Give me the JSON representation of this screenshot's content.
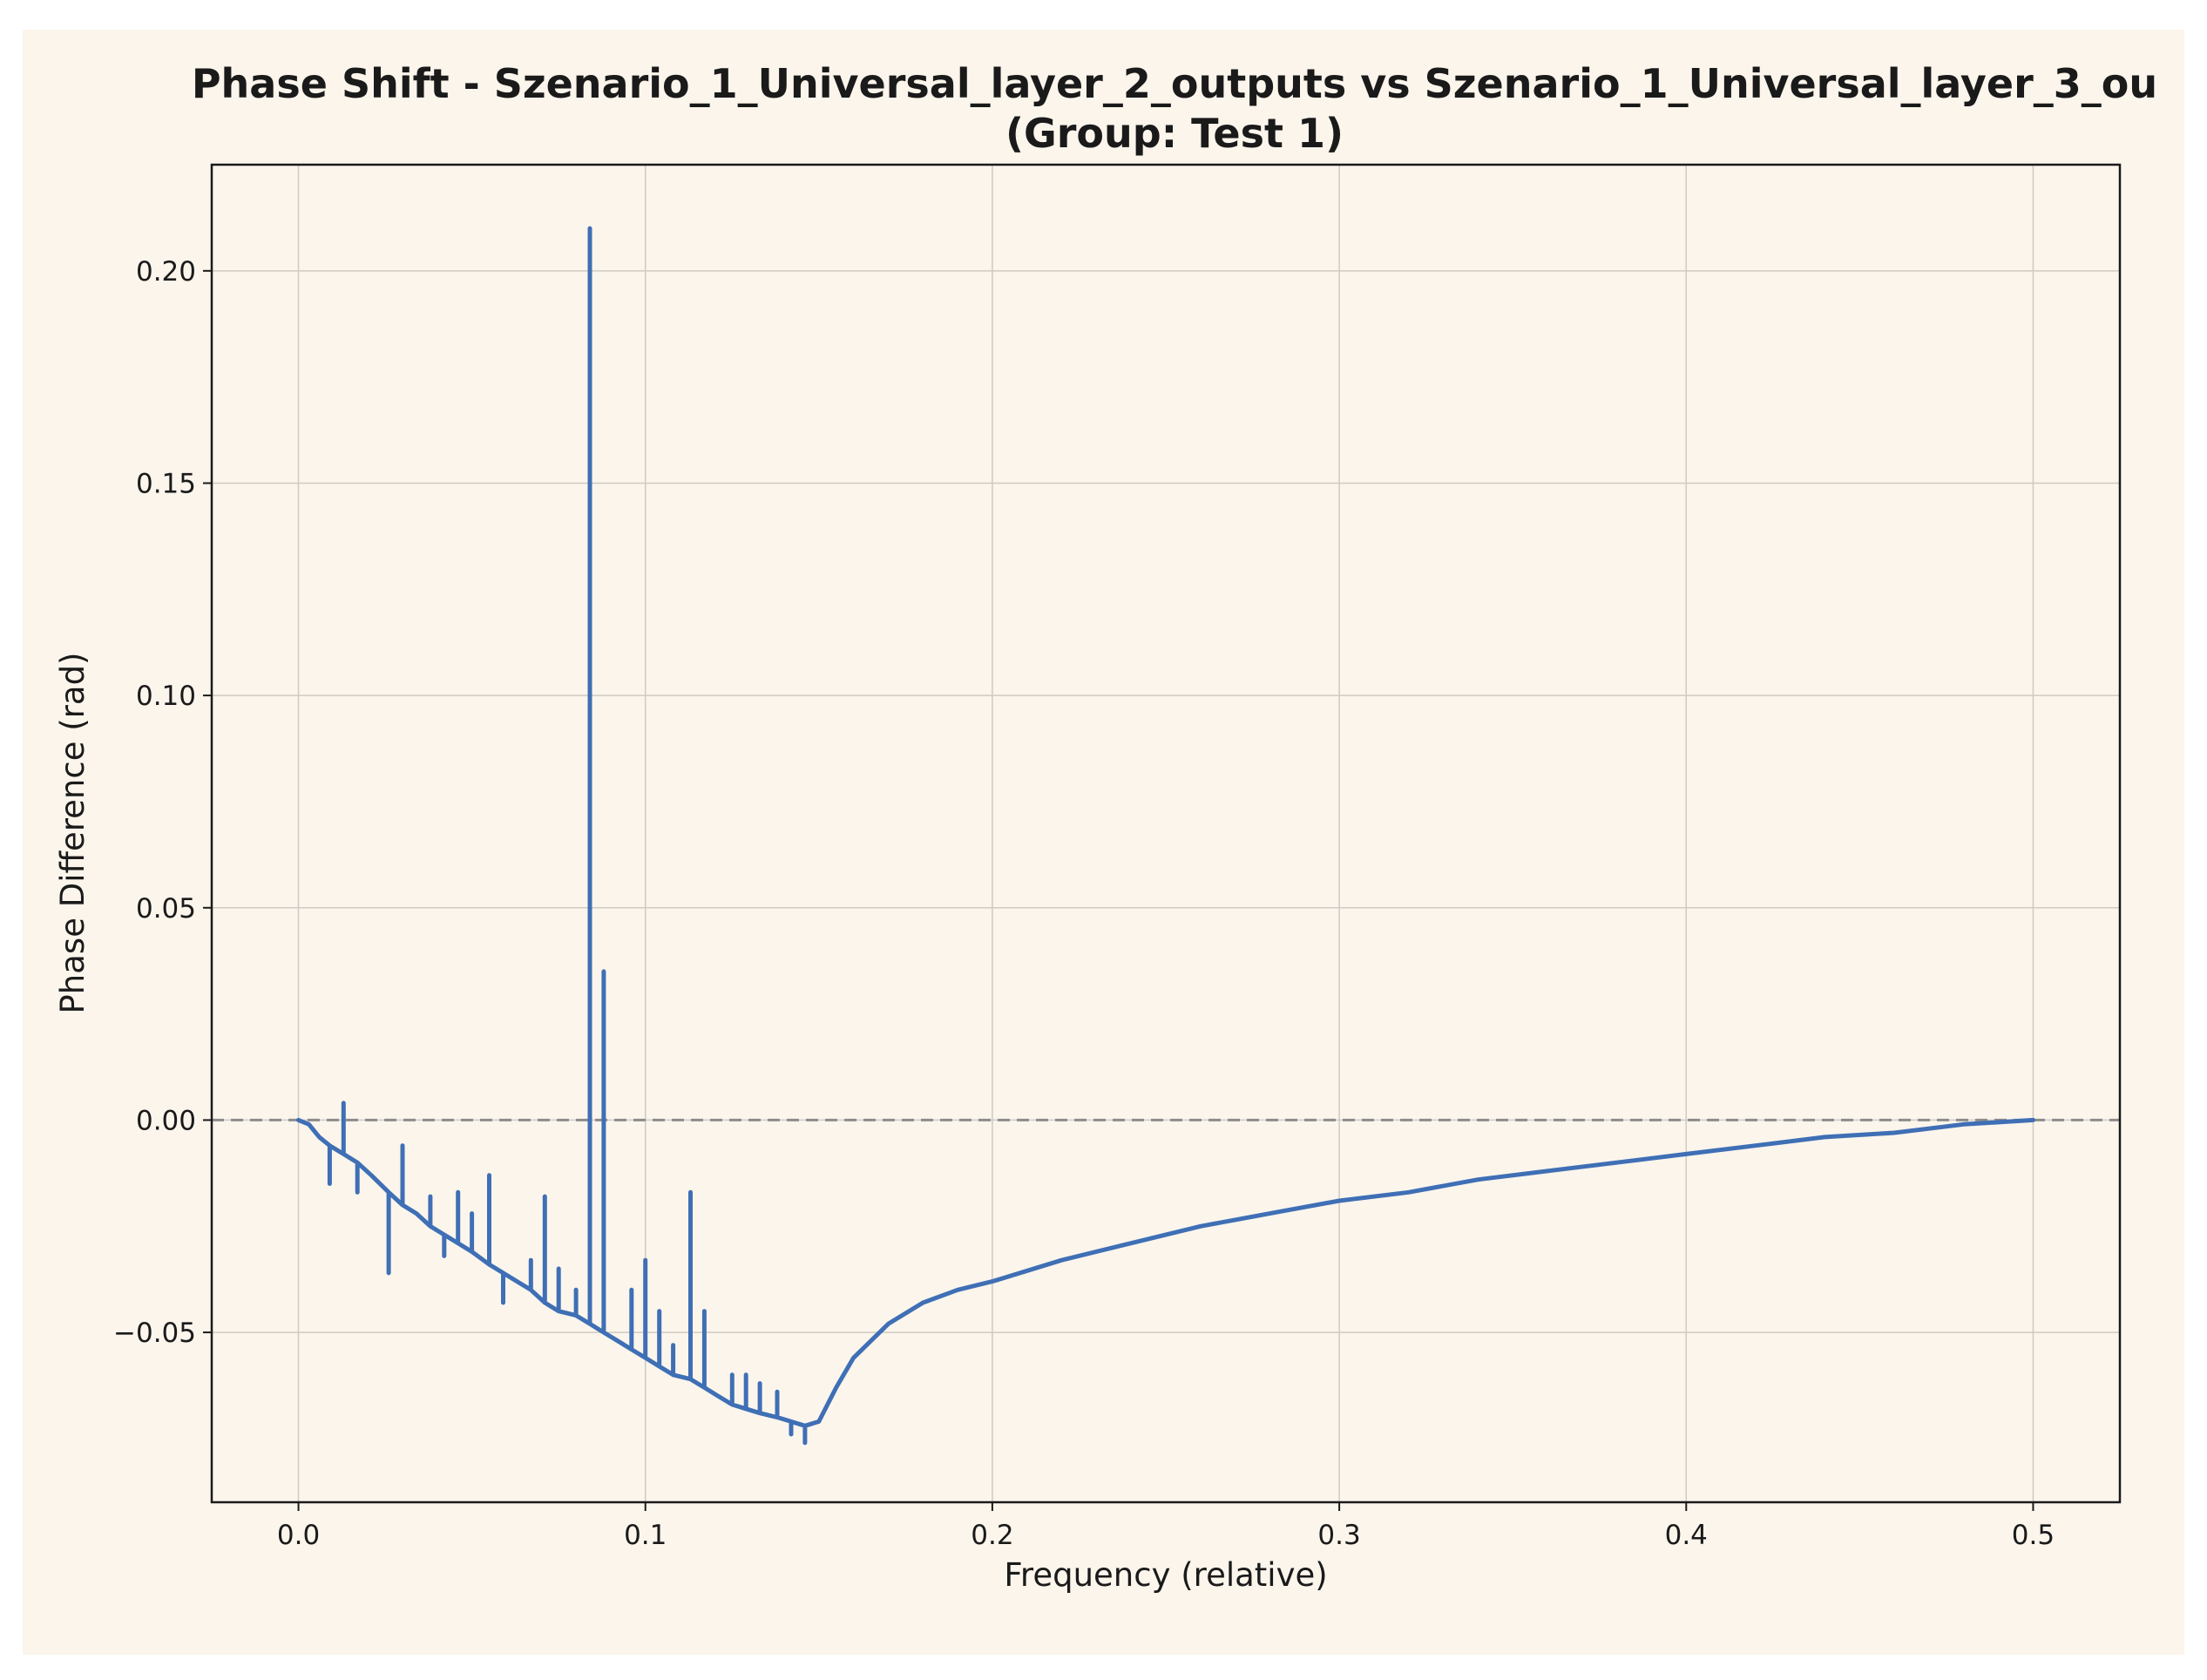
{
  "chart_data": {
    "type": "line",
    "title": "Phase Shift - Szenario_1_Universal_layer_2_outputs vs Szenario_1_Universal_layer_3_ou",
    "subtitle": "(Group: Test 1)",
    "xlabel": "Frequency (relative)",
    "ylabel": "Phase Difference (rad)",
    "xlim": [
      -0.025,
      0.525
    ],
    "ylim": [
      -0.09,
      0.225
    ],
    "xticks": [
      0.0,
      0.1,
      0.2,
      0.3,
      0.4,
      0.5
    ],
    "xtick_labels": [
      "0.0",
      "0.1",
      "0.2",
      "0.3",
      "0.4",
      "0.5"
    ],
    "yticks": [
      -0.05,
      0.0,
      0.05,
      0.1,
      0.15,
      0.2
    ],
    "ytick_labels": [
      "−0.05",
      "0.00",
      "0.05",
      "0.10",
      "0.15",
      "0.20"
    ],
    "grid": true,
    "reference_line": {
      "y": 0.0,
      "style": "dashed",
      "color": "#8c8c8c"
    },
    "colors": {
      "line": "#3f6fb5",
      "background": "#fbf5ec",
      "grid": "#cfcac3",
      "axes": "#1a1a1a"
    },
    "series": [
      {
        "x": [
          0.0,
          0.003,
          0.006,
          0.009,
          0.009,
          0.009,
          0.013,
          0.013,
          0.013,
          0.017,
          0.017,
          0.017,
          0.021,
          0.026,
          0.026,
          0.026,
          0.03,
          0.03,
          0.03,
          0.034,
          0.038,
          0.038,
          0.038,
          0.042,
          0.042,
          0.042,
          0.046,
          0.046,
          0.046,
          0.05,
          0.05,
          0.05,
          0.055,
          0.055,
          0.055,
          0.059,
          0.059,
          0.059,
          0.063,
          0.067,
          0.067,
          0.067,
          0.071,
          0.071,
          0.071,
          0.075,
          0.075,
          0.075,
          0.08,
          0.08,
          0.08,
          0.084,
          0.084,
          0.084,
          0.088,
          0.088,
          0.088,
          0.092,
          0.096,
          0.096,
          0.096,
          0.1,
          0.1,
          0.1,
          0.104,
          0.104,
          0.104,
          0.108,
          0.108,
          0.108,
          0.113,
          0.113,
          0.113,
          0.117,
          0.117,
          0.117,
          0.121,
          0.125,
          0.125,
          0.125,
          0.129,
          0.129,
          0.129,
          0.133,
          0.133,
          0.133,
          0.138,
          0.138,
          0.138,
          0.142,
          0.142,
          0.142,
          0.146,
          0.146,
          0.146,
          0.15,
          0.155,
          0.16,
          0.17,
          0.18,
          0.19,
          0.2,
          0.22,
          0.24,
          0.26,
          0.28,
          0.3,
          0.32,
          0.34,
          0.36,
          0.38,
          0.4,
          0.42,
          0.44,
          0.46,
          0.48,
          0.5
        ],
        "y": [
          0.0,
          -0.001,
          -0.004,
          -0.006,
          -0.015,
          -0.006,
          -0.008,
          0.004,
          -0.008,
          -0.01,
          -0.017,
          -0.01,
          -0.013,
          -0.017,
          -0.036,
          -0.017,
          -0.02,
          -0.006,
          -0.02,
          -0.022,
          -0.025,
          -0.018,
          -0.025,
          -0.027,
          -0.032,
          -0.027,
          -0.029,
          -0.017,
          -0.029,
          -0.031,
          -0.022,
          -0.031,
          -0.034,
          -0.013,
          -0.034,
          -0.036,
          -0.043,
          -0.036,
          -0.038,
          -0.04,
          -0.033,
          -0.04,
          -0.043,
          -0.018,
          -0.043,
          -0.045,
          -0.035,
          -0.045,
          -0.046,
          -0.04,
          -0.046,
          -0.048,
          0.21,
          -0.048,
          -0.05,
          0.035,
          -0.05,
          -0.052,
          -0.054,
          -0.04,
          -0.054,
          -0.056,
          -0.033,
          -0.056,
          -0.058,
          -0.045,
          -0.058,
          -0.06,
          -0.053,
          -0.06,
          -0.061,
          -0.017,
          -0.061,
          -0.063,
          -0.045,
          -0.063,
          -0.065,
          -0.067,
          -0.06,
          -0.067,
          -0.068,
          -0.06,
          -0.068,
          -0.069,
          -0.062,
          -0.069,
          -0.07,
          -0.064,
          -0.07,
          -0.071,
          -0.074,
          -0.071,
          -0.072,
          -0.076,
          -0.072,
          -0.071,
          -0.063,
          -0.056,
          -0.048,
          -0.043,
          -0.04,
          -0.038,
          -0.033,
          -0.029,
          -0.025,
          -0.022,
          -0.019,
          -0.017,
          -0.014,
          -0.012,
          -0.01,
          -0.008,
          -0.006,
          -0.004,
          -0.003,
          -0.001,
          0.0
        ]
      }
    ]
  }
}
